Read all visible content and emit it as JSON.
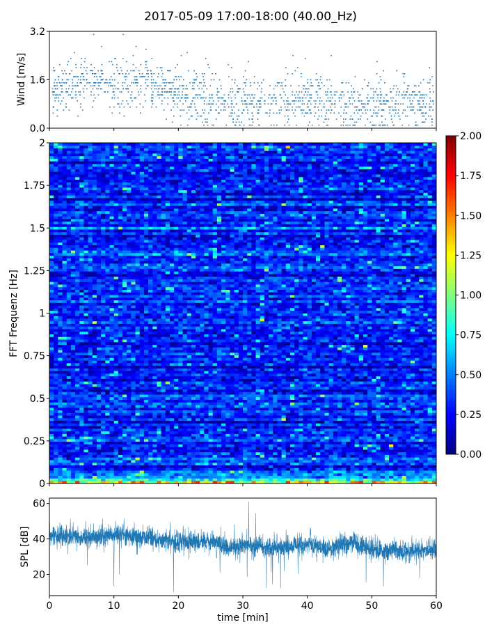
{
  "title": "2017-05-09 17:00-18:00 (40.00_Hz)",
  "chart_data": [
    {
      "type": "scatter",
      "ylabel": "Wind [m/s]",
      "xlabel": "",
      "xlim": [
        0,
        60
      ],
      "ylim": [
        0,
        3.2
      ],
      "yticks": [
        "0.0",
        "1.6",
        "3.2"
      ],
      "color": "#1f77b4",
      "trend": [
        [
          0,
          1.1
        ],
        [
          3,
          1.5
        ],
        [
          6,
          1.4
        ],
        [
          9,
          1.5
        ],
        [
          12,
          1.3
        ],
        [
          15,
          1.5
        ],
        [
          18,
          1.2
        ],
        [
          21,
          1.05
        ],
        [
          24,
          0.9
        ],
        [
          27,
          0.85
        ],
        [
          30,
          0.9
        ],
        [
          33,
          0.8
        ],
        [
          36,
          0.85
        ],
        [
          39,
          1.0
        ],
        [
          42,
          0.9
        ],
        [
          45,
          0.75
        ],
        [
          48,
          0.7
        ],
        [
          51,
          0.65
        ],
        [
          54,
          0.75
        ],
        [
          57,
          0.8
        ],
        [
          60,
          0.7
        ]
      ],
      "spread": 0.75,
      "max_value": 3.1
    },
    {
      "type": "heatmap",
      "ylabel": "FFT Frequenz [Hz]",
      "xlabel": "",
      "xlim": [
        0,
        60
      ],
      "ylim": [
        0,
        2
      ],
      "yticks": [
        "0",
        "0.25",
        "0.5",
        "0.75",
        "1",
        "1.25",
        "1.5",
        "1.75",
        "2"
      ],
      "colormap": "jet",
      "colorbar": {
        "range": [
          0,
          2
        ],
        "ticks": [
          "0.00",
          "0.25",
          "0.50",
          "0.75",
          "1.00",
          "1.25",
          "1.50",
          "1.75",
          "2.00"
        ]
      },
      "typical_value": 0.3,
      "low_frequency_band_value": 1.2
    },
    {
      "type": "line",
      "ylabel": "SPL [dB]",
      "xlabel": "time [min]",
      "xlim": [
        0,
        60
      ],
      "ylim": [
        8,
        63
      ],
      "xticks": [
        "0",
        "10",
        "20",
        "30",
        "40",
        "50",
        "60"
      ],
      "yticks": [
        "20",
        "40",
        "60"
      ],
      "color": "#1f77b4",
      "trend": [
        [
          0,
          42
        ],
        [
          5,
          41
        ],
        [
          10,
          42
        ],
        [
          15,
          41
        ],
        [
          20,
          38
        ],
        [
          25,
          39
        ],
        [
          28,
          35
        ],
        [
          32,
          36
        ],
        [
          36,
          35
        ],
        [
          40,
          37
        ],
        [
          43,
          34
        ],
        [
          47,
          38
        ],
        [
          50,
          34
        ],
        [
          55,
          33
        ],
        [
          60,
          34
        ]
      ],
      "spread": 6
    }
  ]
}
